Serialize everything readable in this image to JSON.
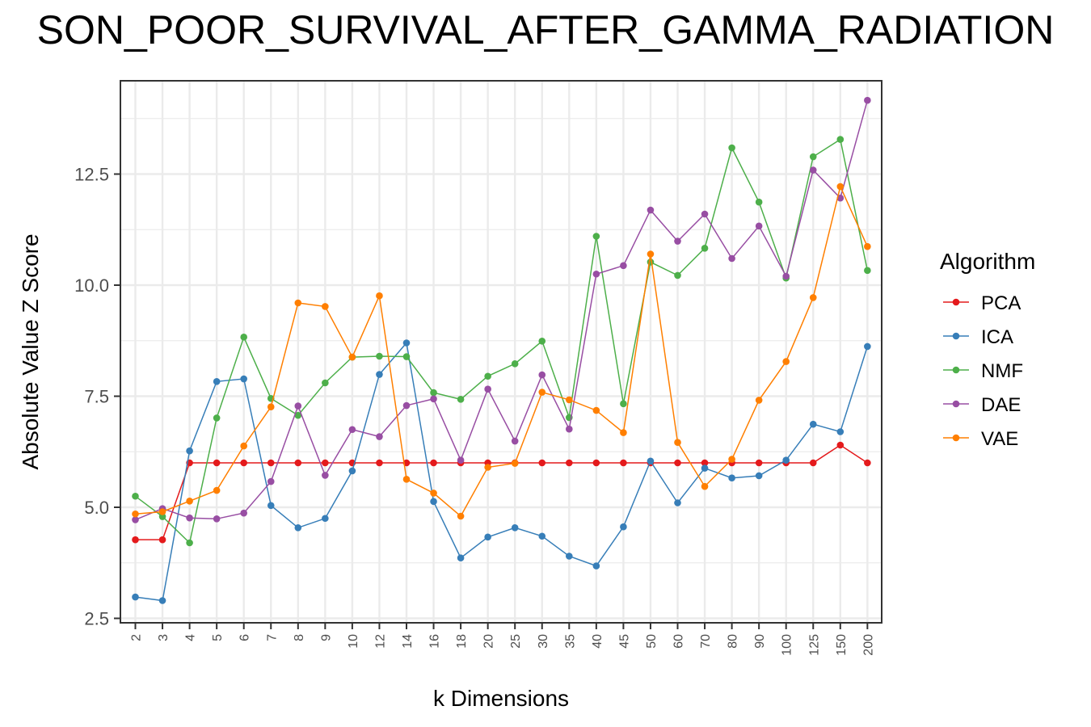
{
  "chart_data": {
    "type": "line",
    "title": "SON_POOR_SURVIVAL_AFTER_GAMMA_RADIATION",
    "xlabel": "k Dimensions",
    "ylabel": "Absolute Value Z Score",
    "categories": [
      "2",
      "3",
      "4",
      "5",
      "6",
      "7",
      "8",
      "9",
      "10",
      "12",
      "14",
      "16",
      "18",
      "20",
      "25",
      "30",
      "35",
      "40",
      "45",
      "50",
      "60",
      "70",
      "80",
      "90",
      "100",
      "125",
      "150",
      "200"
    ],
    "yticks": [
      "2.5",
      "5.0",
      "7.5",
      "10.0",
      "12.5"
    ],
    "ylim": [
      2.4,
      14.6
    ],
    "grid": true,
    "legend": {
      "title": "Algorithm",
      "position": "right"
    },
    "series": [
      {
        "name": "PCA",
        "color": "#e41a1c",
        "values": [
          4.27,
          4.27,
          6.0,
          6.0,
          6.0,
          6.0,
          6.0,
          6.0,
          6.0,
          6.0,
          6.0,
          6.0,
          6.0,
          6.0,
          6.0,
          6.0,
          6.0,
          6.0,
          6.0,
          6.0,
          6.0,
          6.0,
          6.0,
          6.0,
          6.0,
          6.0,
          6.4,
          6.0
        ]
      },
      {
        "name": "ICA",
        "color": "#377eb8",
        "values": [
          2.98,
          2.9,
          6.27,
          7.83,
          7.89,
          5.04,
          4.54,
          4.75,
          5.82,
          7.99,
          8.7,
          5.13,
          3.86,
          4.33,
          4.54,
          4.35,
          3.9,
          3.68,
          4.56,
          6.04,
          5.1,
          5.88,
          5.66,
          5.71,
          6.06,
          6.87,
          6.7,
          8.62
        ]
      },
      {
        "name": "NMF",
        "color": "#4daf4a",
        "values": [
          5.25,
          4.79,
          4.2,
          7.01,
          8.83,
          7.45,
          7.07,
          7.8,
          8.38,
          8.4,
          8.39,
          7.58,
          7.43,
          7.95,
          8.23,
          8.74,
          7.02,
          11.1,
          7.33,
          10.52,
          10.22,
          10.83,
          13.09,
          11.87,
          10.16,
          12.89,
          13.28,
          10.33
        ]
      },
      {
        "name": "DAE",
        "color": "#984ea3",
        "values": [
          4.72,
          4.97,
          4.76,
          4.74,
          4.87,
          5.58,
          7.28,
          5.72,
          6.75,
          6.59,
          7.29,
          7.44,
          6.06,
          7.66,
          6.49,
          7.98,
          6.76,
          10.25,
          10.44,
          11.69,
          10.99,
          11.6,
          10.6,
          11.33,
          10.2,
          12.59,
          11.96,
          14.16
        ]
      },
      {
        "name": "VAE",
        "color": "#ff7f00",
        "values": [
          4.85,
          4.9,
          5.14,
          5.38,
          6.38,
          7.26,
          9.6,
          9.52,
          8.38,
          9.76,
          5.63,
          5.32,
          4.8,
          5.9,
          5.99,
          7.59,
          7.42,
          7.18,
          6.68,
          10.7,
          6.46,
          5.47,
          6.08,
          7.41,
          8.28,
          9.72,
          12.22,
          10.87
        ]
      }
    ]
  }
}
